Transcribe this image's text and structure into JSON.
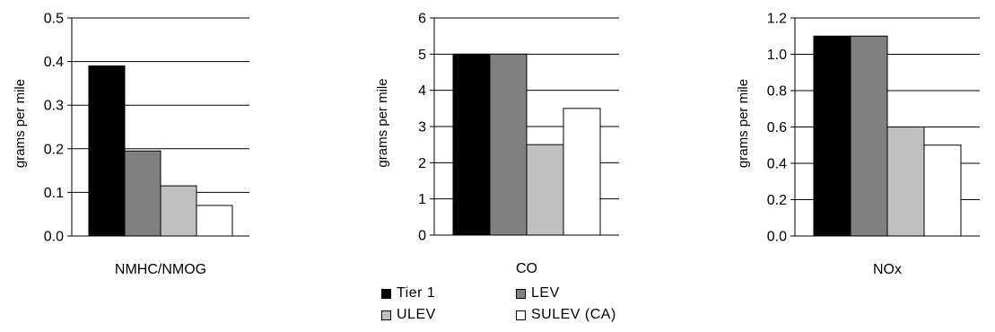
{
  "chart_data": [
    {
      "type": "bar",
      "categories": [
        "NMHC/NMOG"
      ],
      "ylabel": "grams per mile",
      "ylim": [
        0,
        0.5
      ],
      "yticks": [
        "0.0",
        "0.1",
        "0.2",
        "0.3",
        "0.4",
        "0.5"
      ],
      "series": [
        {
          "name": "Tier 1",
          "values": [
            0.39
          ]
        },
        {
          "name": "LEV",
          "values": [
            0.195
          ]
        },
        {
          "name": "ULEV",
          "values": [
            0.115
          ]
        },
        {
          "name": "SULEV (CA)",
          "values": [
            0.07
          ]
        }
      ]
    },
    {
      "type": "bar",
      "categories": [
        "CO"
      ],
      "ylabel": "grams per mile",
      "ylim": [
        0,
        6
      ],
      "yticks": [
        "0",
        "1",
        "2",
        "3",
        "4",
        "5",
        "6"
      ],
      "series": [
        {
          "name": "Tier 1",
          "values": [
            5.0
          ]
        },
        {
          "name": "LEV",
          "values": [
            5.0
          ]
        },
        {
          "name": "ULEV",
          "values": [
            2.5
          ]
        },
        {
          "name": "SULEV (CA)",
          "values": [
            3.5
          ]
        }
      ]
    },
    {
      "type": "bar",
      "categories": [
        "NOx"
      ],
      "ylabel": "grams per mile",
      "ylim": [
        0,
        1.2
      ],
      "yticks": [
        "0.0",
        "0.2",
        "0.4",
        "0.6",
        "0.8",
        "1.0",
        "1.2"
      ],
      "series": [
        {
          "name": "Tier 1",
          "values": [
            1.1
          ]
        },
        {
          "name": "LEV",
          "values": [
            1.1
          ]
        },
        {
          "name": "ULEV",
          "values": [
            0.6
          ]
        },
        {
          "name": "SULEV (CA)",
          "values": [
            0.5
          ]
        }
      ]
    }
  ],
  "legend": [
    {
      "label": "Tier 1",
      "color": "#000000"
    },
    {
      "label": "LEV",
      "color": "#808080"
    },
    {
      "label": "ULEV",
      "color": "#c0c0c0"
    },
    {
      "label": "SULEV (CA)",
      "color": "#ffffff"
    }
  ],
  "colors": {
    "gridline": "#000000",
    "bar_outline": "#000000"
  }
}
